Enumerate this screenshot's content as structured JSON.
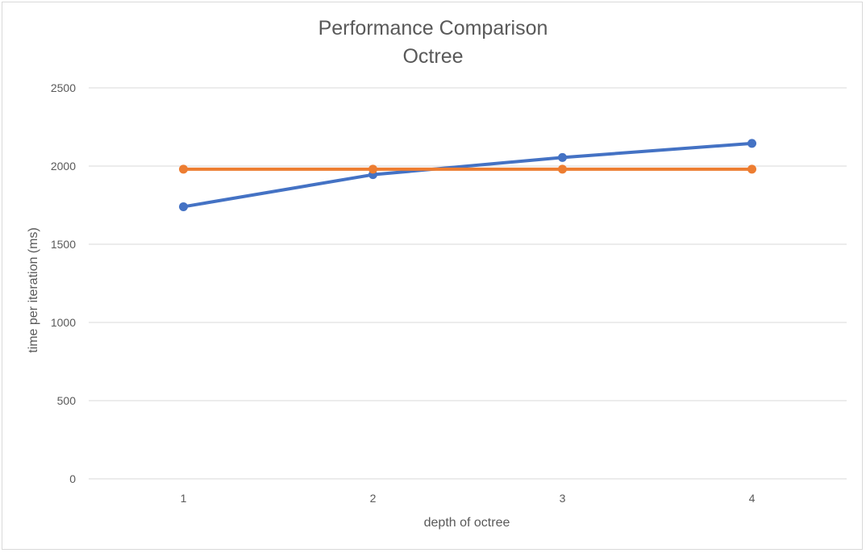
{
  "chart_data": {
    "type": "line",
    "title": "Performance Comparison",
    "subtitle": "Octree",
    "xlabel": "depth of octree",
    "ylabel": "time per iteration (ms)",
    "categories": [
      "1",
      "2",
      "3",
      "4"
    ],
    "ylim": [
      0,
      2500
    ],
    "yticks": [
      "0",
      "500",
      "1000",
      "1500",
      "2000",
      "2500"
    ],
    "grid": true,
    "legend": "none",
    "series": [
      {
        "values": [
          1740,
          1945,
          2055,
          2145
        ],
        "color": "#4472C4"
      },
      {
        "values": [
          1980,
          1980,
          1980,
          1980
        ],
        "color": "#ED7D31"
      }
    ],
    "gridline_color": "#d9d9d9",
    "text_color": "#595959"
  }
}
